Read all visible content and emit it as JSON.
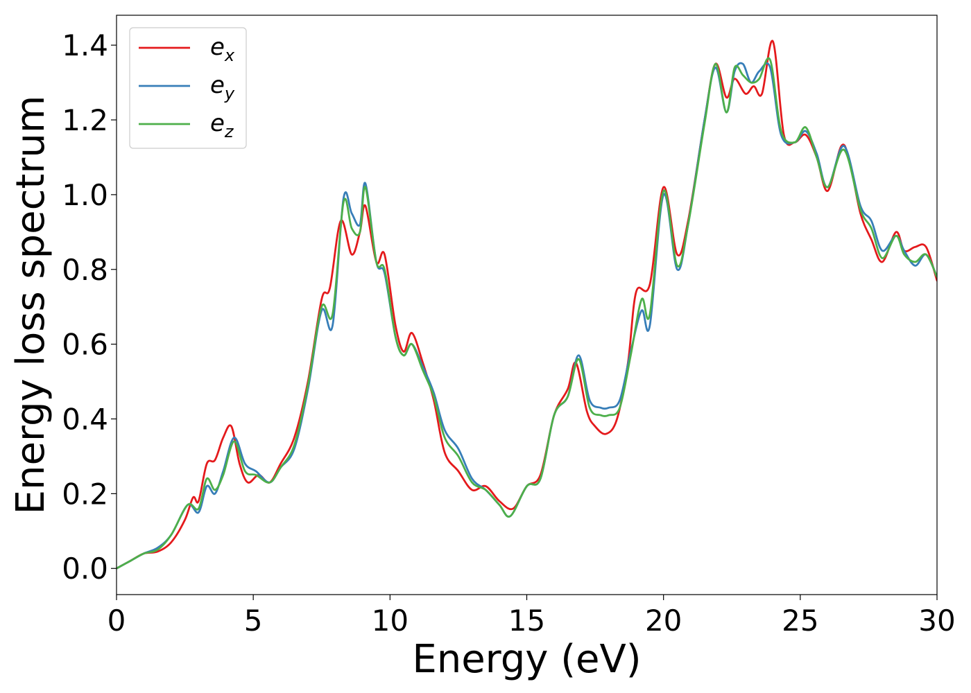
{
  "chart_data": {
    "type": "line",
    "title": "",
    "xlabel": "Energy (eV)",
    "ylabel": "Energy loss spectrum",
    "xlim": [
      0,
      30
    ],
    "ylim": [
      -0.07,
      1.48
    ],
    "xticks": [
      0,
      5,
      10,
      15,
      20,
      25,
      30
    ],
    "xtick_labels": [
      "0",
      "5",
      "10",
      "15",
      "20",
      "25",
      "30"
    ],
    "yticks": [
      0.0,
      0.2,
      0.4,
      0.6,
      0.8,
      1.0,
      1.2,
      1.4
    ],
    "ytick_labels": [
      "0.0",
      "0.2",
      "0.4",
      "0.6",
      "0.8",
      "1.0",
      "1.2",
      "1.4"
    ],
    "grid": false,
    "legend_position": "top-left",
    "series": [
      {
        "name": "e_x",
        "label_base": "e",
        "label_sub": "x",
        "color": "#e41a1c",
        "points": [
          [
            0,
            0
          ],
          [
            0.5,
            0.02
          ],
          [
            1,
            0.04
          ],
          [
            1.5,
            0.045
          ],
          [
            2,
            0.07
          ],
          [
            2.5,
            0.13
          ],
          [
            2.8,
            0.19
          ],
          [
            3,
            0.18
          ],
          [
            3.3,
            0.28
          ],
          [
            3.6,
            0.29
          ],
          [
            3.9,
            0.35
          ],
          [
            4.2,
            0.38
          ],
          [
            4.5,
            0.28
          ],
          [
            4.8,
            0.23
          ],
          [
            5.2,
            0.25
          ],
          [
            5.6,
            0.23
          ],
          [
            6,
            0.28
          ],
          [
            6.5,
            0.35
          ],
          [
            7,
            0.5
          ],
          [
            7.5,
            0.72
          ],
          [
            7.8,
            0.75
          ],
          [
            8.2,
            0.93
          ],
          [
            8.6,
            0.84
          ],
          [
            8.9,
            0.9
          ],
          [
            9.1,
            0.97
          ],
          [
            9.5,
            0.82
          ],
          [
            9.8,
            0.84
          ],
          [
            10.2,
            0.65
          ],
          [
            10.5,
            0.58
          ],
          [
            10.8,
            0.63
          ],
          [
            11.2,
            0.55
          ],
          [
            11.6,
            0.45
          ],
          [
            12,
            0.31
          ],
          [
            12.5,
            0.26
          ],
          [
            13,
            0.21
          ],
          [
            13.5,
            0.22
          ],
          [
            14,
            0.18
          ],
          [
            14.5,
            0.16
          ],
          [
            15,
            0.22
          ],
          [
            15.5,
            0.25
          ],
          [
            16,
            0.41
          ],
          [
            16.5,
            0.48
          ],
          [
            16.8,
            0.55
          ],
          [
            17.2,
            0.42
          ],
          [
            17.5,
            0.38
          ],
          [
            17.9,
            0.36
          ],
          [
            18.3,
            0.4
          ],
          [
            18.7,
            0.55
          ],
          [
            19,
            0.74
          ],
          [
            19.5,
            0.76
          ],
          [
            20,
            1.02
          ],
          [
            20.5,
            0.84
          ],
          [
            20.9,
            0.93
          ],
          [
            21.5,
            1.2
          ],
          [
            21.9,
            1.35
          ],
          [
            22.3,
            1.26
          ],
          [
            22.6,
            1.31
          ],
          [
            23,
            1.27
          ],
          [
            23.3,
            1.29
          ],
          [
            23.6,
            1.27
          ],
          [
            24,
            1.41
          ],
          [
            24.4,
            1.16
          ],
          [
            24.8,
            1.14
          ],
          [
            25.2,
            1.16
          ],
          [
            25.6,
            1.1
          ],
          [
            26,
            1.01
          ],
          [
            26.5,
            1.13
          ],
          [
            26.8,
            1.09
          ],
          [
            27.2,
            0.95
          ],
          [
            27.6,
            0.88
          ],
          [
            28,
            0.82
          ],
          [
            28.5,
            0.9
          ],
          [
            28.8,
            0.85
          ],
          [
            29.2,
            0.86
          ],
          [
            29.6,
            0.86
          ],
          [
            30,
            0.77
          ]
        ]
      },
      {
        "name": "e_y",
        "label_base": "e",
        "label_sub": "y",
        "color": "#377eb8",
        "points": [
          [
            0,
            0
          ],
          [
            0.5,
            0.02
          ],
          [
            1,
            0.04
          ],
          [
            1.5,
            0.055
          ],
          [
            2,
            0.09
          ],
          [
            2.6,
            0.17
          ],
          [
            3,
            0.15
          ],
          [
            3.3,
            0.22
          ],
          [
            3.6,
            0.2
          ],
          [
            3.9,
            0.26
          ],
          [
            4.3,
            0.35
          ],
          [
            4.7,
            0.28
          ],
          [
            5.1,
            0.26
          ],
          [
            5.6,
            0.23
          ],
          [
            6,
            0.27
          ],
          [
            6.5,
            0.32
          ],
          [
            7,
            0.48
          ],
          [
            7.5,
            0.69
          ],
          [
            7.9,
            0.65
          ],
          [
            8.3,
            0.99
          ],
          [
            8.6,
            0.95
          ],
          [
            8.9,
            0.92
          ],
          [
            9.1,
            1.03
          ],
          [
            9.5,
            0.82
          ],
          [
            9.8,
            0.79
          ],
          [
            10.2,
            0.62
          ],
          [
            10.5,
            0.57
          ],
          [
            10.8,
            0.6
          ],
          [
            11.2,
            0.54
          ],
          [
            11.6,
            0.47
          ],
          [
            12,
            0.37
          ],
          [
            12.5,
            0.32
          ],
          [
            13,
            0.24
          ],
          [
            13.5,
            0.21
          ],
          [
            14,
            0.17
          ],
          [
            14.4,
            0.14
          ],
          [
            15,
            0.22
          ],
          [
            15.5,
            0.24
          ],
          [
            16,
            0.41
          ],
          [
            16.5,
            0.46
          ],
          [
            16.9,
            0.57
          ],
          [
            17.3,
            0.45
          ],
          [
            17.7,
            0.43
          ],
          [
            18,
            0.43
          ],
          [
            18.4,
            0.45
          ],
          [
            18.8,
            0.58
          ],
          [
            19.2,
            0.69
          ],
          [
            19.5,
            0.65
          ],
          [
            20,
            1.0
          ],
          [
            20.5,
            0.8
          ],
          [
            20.9,
            0.92
          ],
          [
            21.5,
            1.2
          ],
          [
            21.9,
            1.34
          ],
          [
            22.3,
            1.22
          ],
          [
            22.6,
            1.33
          ],
          [
            22.9,
            1.35
          ],
          [
            23.2,
            1.3
          ],
          [
            23.5,
            1.33
          ],
          [
            23.9,
            1.34
          ],
          [
            24.3,
            1.16
          ],
          [
            24.8,
            1.14
          ],
          [
            25.2,
            1.17
          ],
          [
            25.6,
            1.11
          ],
          [
            26,
            1.02
          ],
          [
            26.6,
            1.13
          ],
          [
            27.2,
            0.97
          ],
          [
            27.6,
            0.93
          ],
          [
            28,
            0.85
          ],
          [
            28.5,
            0.89
          ],
          [
            28.8,
            0.85
          ],
          [
            29.2,
            0.81
          ],
          [
            29.6,
            0.84
          ],
          [
            30,
            0.78
          ]
        ]
      },
      {
        "name": "e_z",
        "label_base": "e",
        "label_sub": "z",
        "color": "#4daf4a",
        "points": [
          [
            0,
            0
          ],
          [
            0.5,
            0.02
          ],
          [
            1,
            0.04
          ],
          [
            1.5,
            0.05
          ],
          [
            2,
            0.09
          ],
          [
            2.6,
            0.17
          ],
          [
            3,
            0.16
          ],
          [
            3.3,
            0.24
          ],
          [
            3.6,
            0.21
          ],
          [
            3.9,
            0.25
          ],
          [
            4.3,
            0.34
          ],
          [
            4.7,
            0.26
          ],
          [
            5.1,
            0.25
          ],
          [
            5.6,
            0.23
          ],
          [
            6,
            0.27
          ],
          [
            6.5,
            0.33
          ],
          [
            7,
            0.49
          ],
          [
            7.5,
            0.7
          ],
          [
            7.9,
            0.68
          ],
          [
            8.3,
            0.98
          ],
          [
            8.6,
            0.91
          ],
          [
            8.9,
            0.9
          ],
          [
            9.1,
            1.02
          ],
          [
            9.5,
            0.82
          ],
          [
            9.8,
            0.8
          ],
          [
            10.2,
            0.62
          ],
          [
            10.5,
            0.57
          ],
          [
            10.8,
            0.6
          ],
          [
            11.2,
            0.53
          ],
          [
            11.6,
            0.46
          ],
          [
            12,
            0.35
          ],
          [
            12.5,
            0.3
          ],
          [
            13,
            0.23
          ],
          [
            13.5,
            0.21
          ],
          [
            14,
            0.17
          ],
          [
            14.4,
            0.14
          ],
          [
            15,
            0.22
          ],
          [
            15.5,
            0.24
          ],
          [
            16,
            0.41
          ],
          [
            16.5,
            0.46
          ],
          [
            16.9,
            0.56
          ],
          [
            17.3,
            0.43
          ],
          [
            17.7,
            0.41
          ],
          [
            18,
            0.41
          ],
          [
            18.4,
            0.43
          ],
          [
            18.8,
            0.57
          ],
          [
            19.2,
            0.72
          ],
          [
            19.5,
            0.68
          ],
          [
            20,
            1.01
          ],
          [
            20.5,
            0.81
          ],
          [
            20.9,
            0.92
          ],
          [
            21.5,
            1.19
          ],
          [
            21.9,
            1.35
          ],
          [
            22.3,
            1.22
          ],
          [
            22.6,
            1.34
          ],
          [
            22.9,
            1.32
          ],
          [
            23.2,
            1.3
          ],
          [
            23.5,
            1.31
          ],
          [
            23.9,
            1.36
          ],
          [
            24.3,
            1.17
          ],
          [
            24.8,
            1.14
          ],
          [
            25.2,
            1.18
          ],
          [
            25.6,
            1.1
          ],
          [
            26,
            1.02
          ],
          [
            26.6,
            1.12
          ],
          [
            27.2,
            0.96
          ],
          [
            27.6,
            0.91
          ],
          [
            28,
            0.83
          ],
          [
            28.5,
            0.89
          ],
          [
            28.8,
            0.84
          ],
          [
            29.2,
            0.82
          ],
          [
            29.6,
            0.84
          ],
          [
            30,
            0.78
          ]
        ]
      }
    ]
  }
}
